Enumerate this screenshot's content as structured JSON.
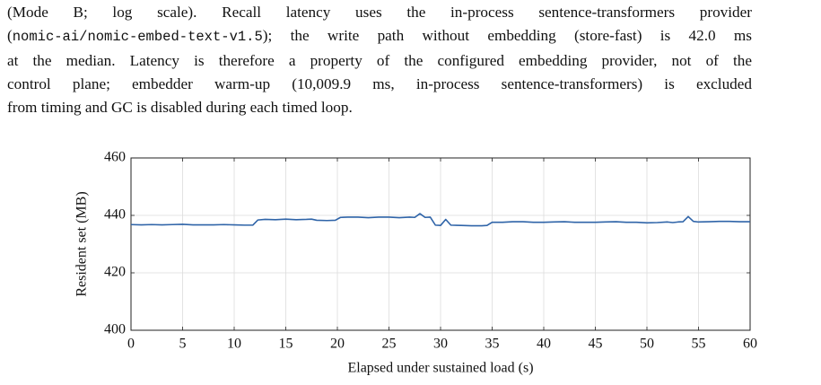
{
  "text": {
    "lines": [
      "(Mode B; log scale).  Recall latency uses the in-process sentence-transformers provider",
      [
        "(",
        "); the write path without embedding (store-fast) is 42.0 ms"
      ],
      "at the median. Latency is therefore a property of the configured embedding provider, not of the",
      "control plane; embedder warm-up (10,009.9 ms, in-process sentence-transformers) is excluded",
      "from timing and GC is disabled during each timed loop."
    ],
    "code": "nomic-ai/nomic-embed-text-v1.5"
  },
  "chart_data": {
    "type": "line",
    "x_label": "Elapsed under sustained load (s)",
    "y_label": "Resident set (MB)",
    "x": [
      0,
      1,
      2,
      3,
      4,
      5,
      6,
      7,
      8,
      9,
      10,
      11,
      11.8,
      12.3,
      13,
      14,
      15,
      16,
      17,
      17.5,
      18,
      19,
      19.8,
      20.3,
      21,
      22,
      23,
      24,
      25,
      26,
      27,
      27.5,
      28,
      28.5,
      29,
      29.5,
      30,
      30.5,
      31,
      32,
      33,
      34,
      34.5,
      35,
      36,
      37,
      38,
      39,
      40,
      41,
      42,
      43,
      44,
      45,
      46,
      47,
      48,
      49,
      50,
      51,
      52,
      52.5,
      53,
      53.5,
      54,
      54.5,
      55,
      56,
      57,
      58,
      59,
      60
    ],
    "series": [
      {
        "color": "#2f64a8",
        "values": [
          436.8,
          436.7,
          436.8,
          436.7,
          436.8,
          436.9,
          436.7,
          436.7,
          436.7,
          436.8,
          436.7,
          436.6,
          436.6,
          438.4,
          438.6,
          438.5,
          438.7,
          438.5,
          438.6,
          438.7,
          438.3,
          438.2,
          438.3,
          439.3,
          439.4,
          439.4,
          439.2,
          439.4,
          439.4,
          439.2,
          439.4,
          439.3,
          440.6,
          439.3,
          439.4,
          436.6,
          436.5,
          438.6,
          436.6,
          436.5,
          436.4,
          436.4,
          436.5,
          437.6,
          437.6,
          437.8,
          437.8,
          437.6,
          437.6,
          437.7,
          437.8,
          437.6,
          437.6,
          437.6,
          437.7,
          437.8,
          437.6,
          437.6,
          437.4,
          437.5,
          437.7,
          437.5,
          437.7,
          437.8,
          439.6,
          437.9,
          437.7,
          437.8,
          437.9,
          437.9,
          437.8,
          437.8
        ]
      }
    ],
    "xlim": [
      0,
      60
    ],
    "xticks": [
      0,
      5,
      10,
      15,
      20,
      25,
      30,
      35,
      40,
      45,
      50,
      55,
      60
    ],
    "ylim": [
      400,
      460
    ],
    "yticks": [
      400,
      420,
      440,
      460
    ],
    "grid": true
  }
}
